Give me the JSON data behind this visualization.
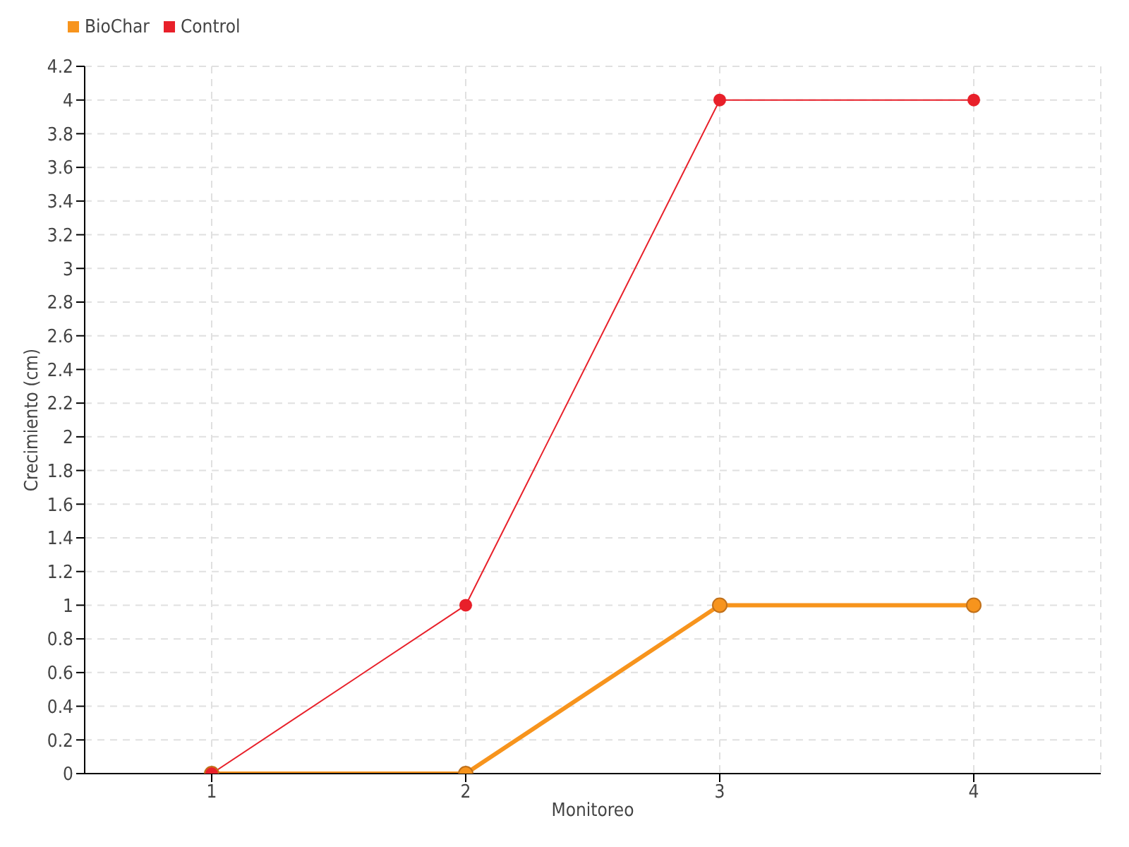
{
  "chart_data": {
    "type": "line",
    "xlabel": "Monitoreo",
    "ylabel": "Crecimiento (cm)",
    "x": [
      1,
      2,
      3,
      4
    ],
    "series": [
      {
        "name": "BioChar",
        "color": "#f7941d",
        "values": [
          0,
          0,
          1,
          1
        ]
      },
      {
        "name": "Control",
        "color": "#e8202a",
        "values": [
          0,
          1,
          4,
          4
        ]
      }
    ],
    "xlim": [
      0.5,
      4.5
    ],
    "xticks": [
      1,
      2,
      3,
      4
    ],
    "ylim": [
      0,
      4.2
    ],
    "yticks": [
      0,
      0.2,
      0.4,
      0.6,
      0.8,
      1,
      1.2,
      1.4,
      1.6,
      1.8,
      2,
      2.2,
      2.4,
      2.6,
      2.8,
      3,
      3.2,
      3.4,
      3.6,
      3.8,
      4,
      4.2
    ],
    "grid": true,
    "legend": "top left",
    "marker": "circle",
    "line_style": "solid"
  }
}
